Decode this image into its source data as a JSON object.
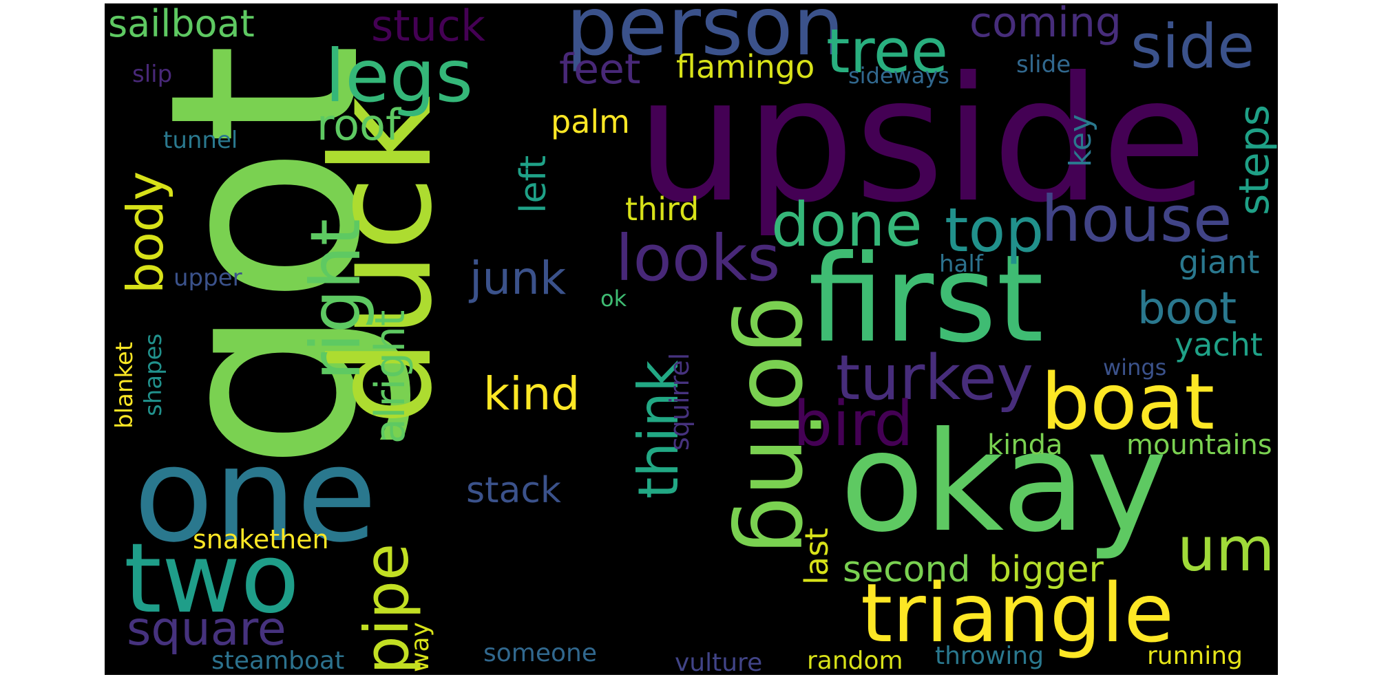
{
  "words": [
    {
      "text": "got",
      "color": "#7ad151"
    },
    {
      "text": "upside",
      "color": "#440154"
    },
    {
      "text": "duck",
      "color": "#addc30"
    },
    {
      "text": "one",
      "color": "#2a788e"
    },
    {
      "text": "okay",
      "color": "#5ec962"
    },
    {
      "text": "first",
      "color": "#3fbc73"
    },
    {
      "text": "going",
      "color": "#7ad151"
    },
    {
      "text": "two",
      "color": "#1f9e89"
    },
    {
      "text": "person",
      "color": "#3b528b"
    },
    {
      "text": "triangle",
      "color": "#fde725"
    },
    {
      "text": "boat",
      "color": "#fde725"
    },
    {
      "text": "house",
      "color": "#414487"
    },
    {
      "text": "turkey",
      "color": "#472d7b"
    },
    {
      "text": "bird",
      "color": "#440154"
    },
    {
      "text": "looks",
      "color": "#482878"
    },
    {
      "text": "legs",
      "color": "#35b779"
    },
    {
      "text": "right",
      "color": "#5ec962"
    },
    {
      "text": "done",
      "color": "#35b779"
    },
    {
      "text": "top",
      "color": "#21918c"
    },
    {
      "text": "tree",
      "color": "#29af7f"
    },
    {
      "text": "side",
      "color": "#3b528b"
    },
    {
      "text": "pipe",
      "color": "#c2df23"
    },
    {
      "text": "square",
      "color": "#46327e"
    },
    {
      "text": "um",
      "color": "#a0da39"
    },
    {
      "text": "think",
      "color": "#22a884"
    },
    {
      "text": "body",
      "color": "#d8e219"
    },
    {
      "text": "kind",
      "color": "#fde725"
    },
    {
      "text": "alright",
      "color": "#5ec962"
    },
    {
      "text": "junk",
      "color": "#3b528b"
    },
    {
      "text": "boot",
      "color": "#2a788e"
    },
    {
      "text": "stuck",
      "color": "#440154"
    },
    {
      "text": "feet",
      "color": "#482878"
    },
    {
      "text": "coming",
      "color": "#472d7b"
    },
    {
      "text": "sailboat",
      "color": "#5ec962"
    },
    {
      "text": "roof",
      "color": "#5ec962"
    },
    {
      "text": "steps",
      "color": "#1fa187"
    },
    {
      "text": "second",
      "color": "#7ad151"
    },
    {
      "text": "bigger",
      "color": "#b5de2b"
    },
    {
      "text": "stack",
      "color": "#3b528b"
    },
    {
      "text": "flamingo",
      "color": "#d8e219"
    },
    {
      "text": "palm",
      "color": "#fde725"
    },
    {
      "text": "left",
      "color": "#1fa187"
    },
    {
      "text": "third",
      "color": "#d8e219"
    },
    {
      "text": "giant",
      "color": "#2a788e"
    },
    {
      "text": "yacht",
      "color": "#1fa187"
    },
    {
      "text": "mountains",
      "color": "#7ad151"
    },
    {
      "text": "kinda",
      "color": "#7ad151"
    },
    {
      "text": "key",
      "color": "#2a788e"
    },
    {
      "text": "last",
      "color": "#d8e219"
    },
    {
      "text": "snakethen",
      "color": "#fde725"
    },
    {
      "text": "squirrel",
      "color": "#46327e"
    },
    {
      "text": "steamboat",
      "color": "#2c728e"
    },
    {
      "text": "someone",
      "color": "#31688e"
    },
    {
      "text": "random",
      "color": "#d8e219"
    },
    {
      "text": "throwing",
      "color": "#2a788e"
    },
    {
      "text": "running",
      "color": "#e5e419"
    },
    {
      "text": "vulture",
      "color": "#414487"
    },
    {
      "text": "way",
      "color": "#d8e219"
    },
    {
      "text": "shapes",
      "color": "#21918c"
    },
    {
      "text": "blanket",
      "color": "#fde725"
    },
    {
      "text": "upper",
      "color": "#3b528b"
    },
    {
      "text": "ok",
      "color": "#3fbc73"
    },
    {
      "text": "half",
      "color": "#2c728e"
    },
    {
      "text": "wings",
      "color": "#3b528b"
    },
    {
      "text": "tunnel",
      "color": "#2a788e"
    },
    {
      "text": "slip",
      "color": "#482878"
    },
    {
      "text": "sideways",
      "color": "#31688e"
    },
    {
      "text": "slide",
      "color": "#31688e"
    }
  ]
}
